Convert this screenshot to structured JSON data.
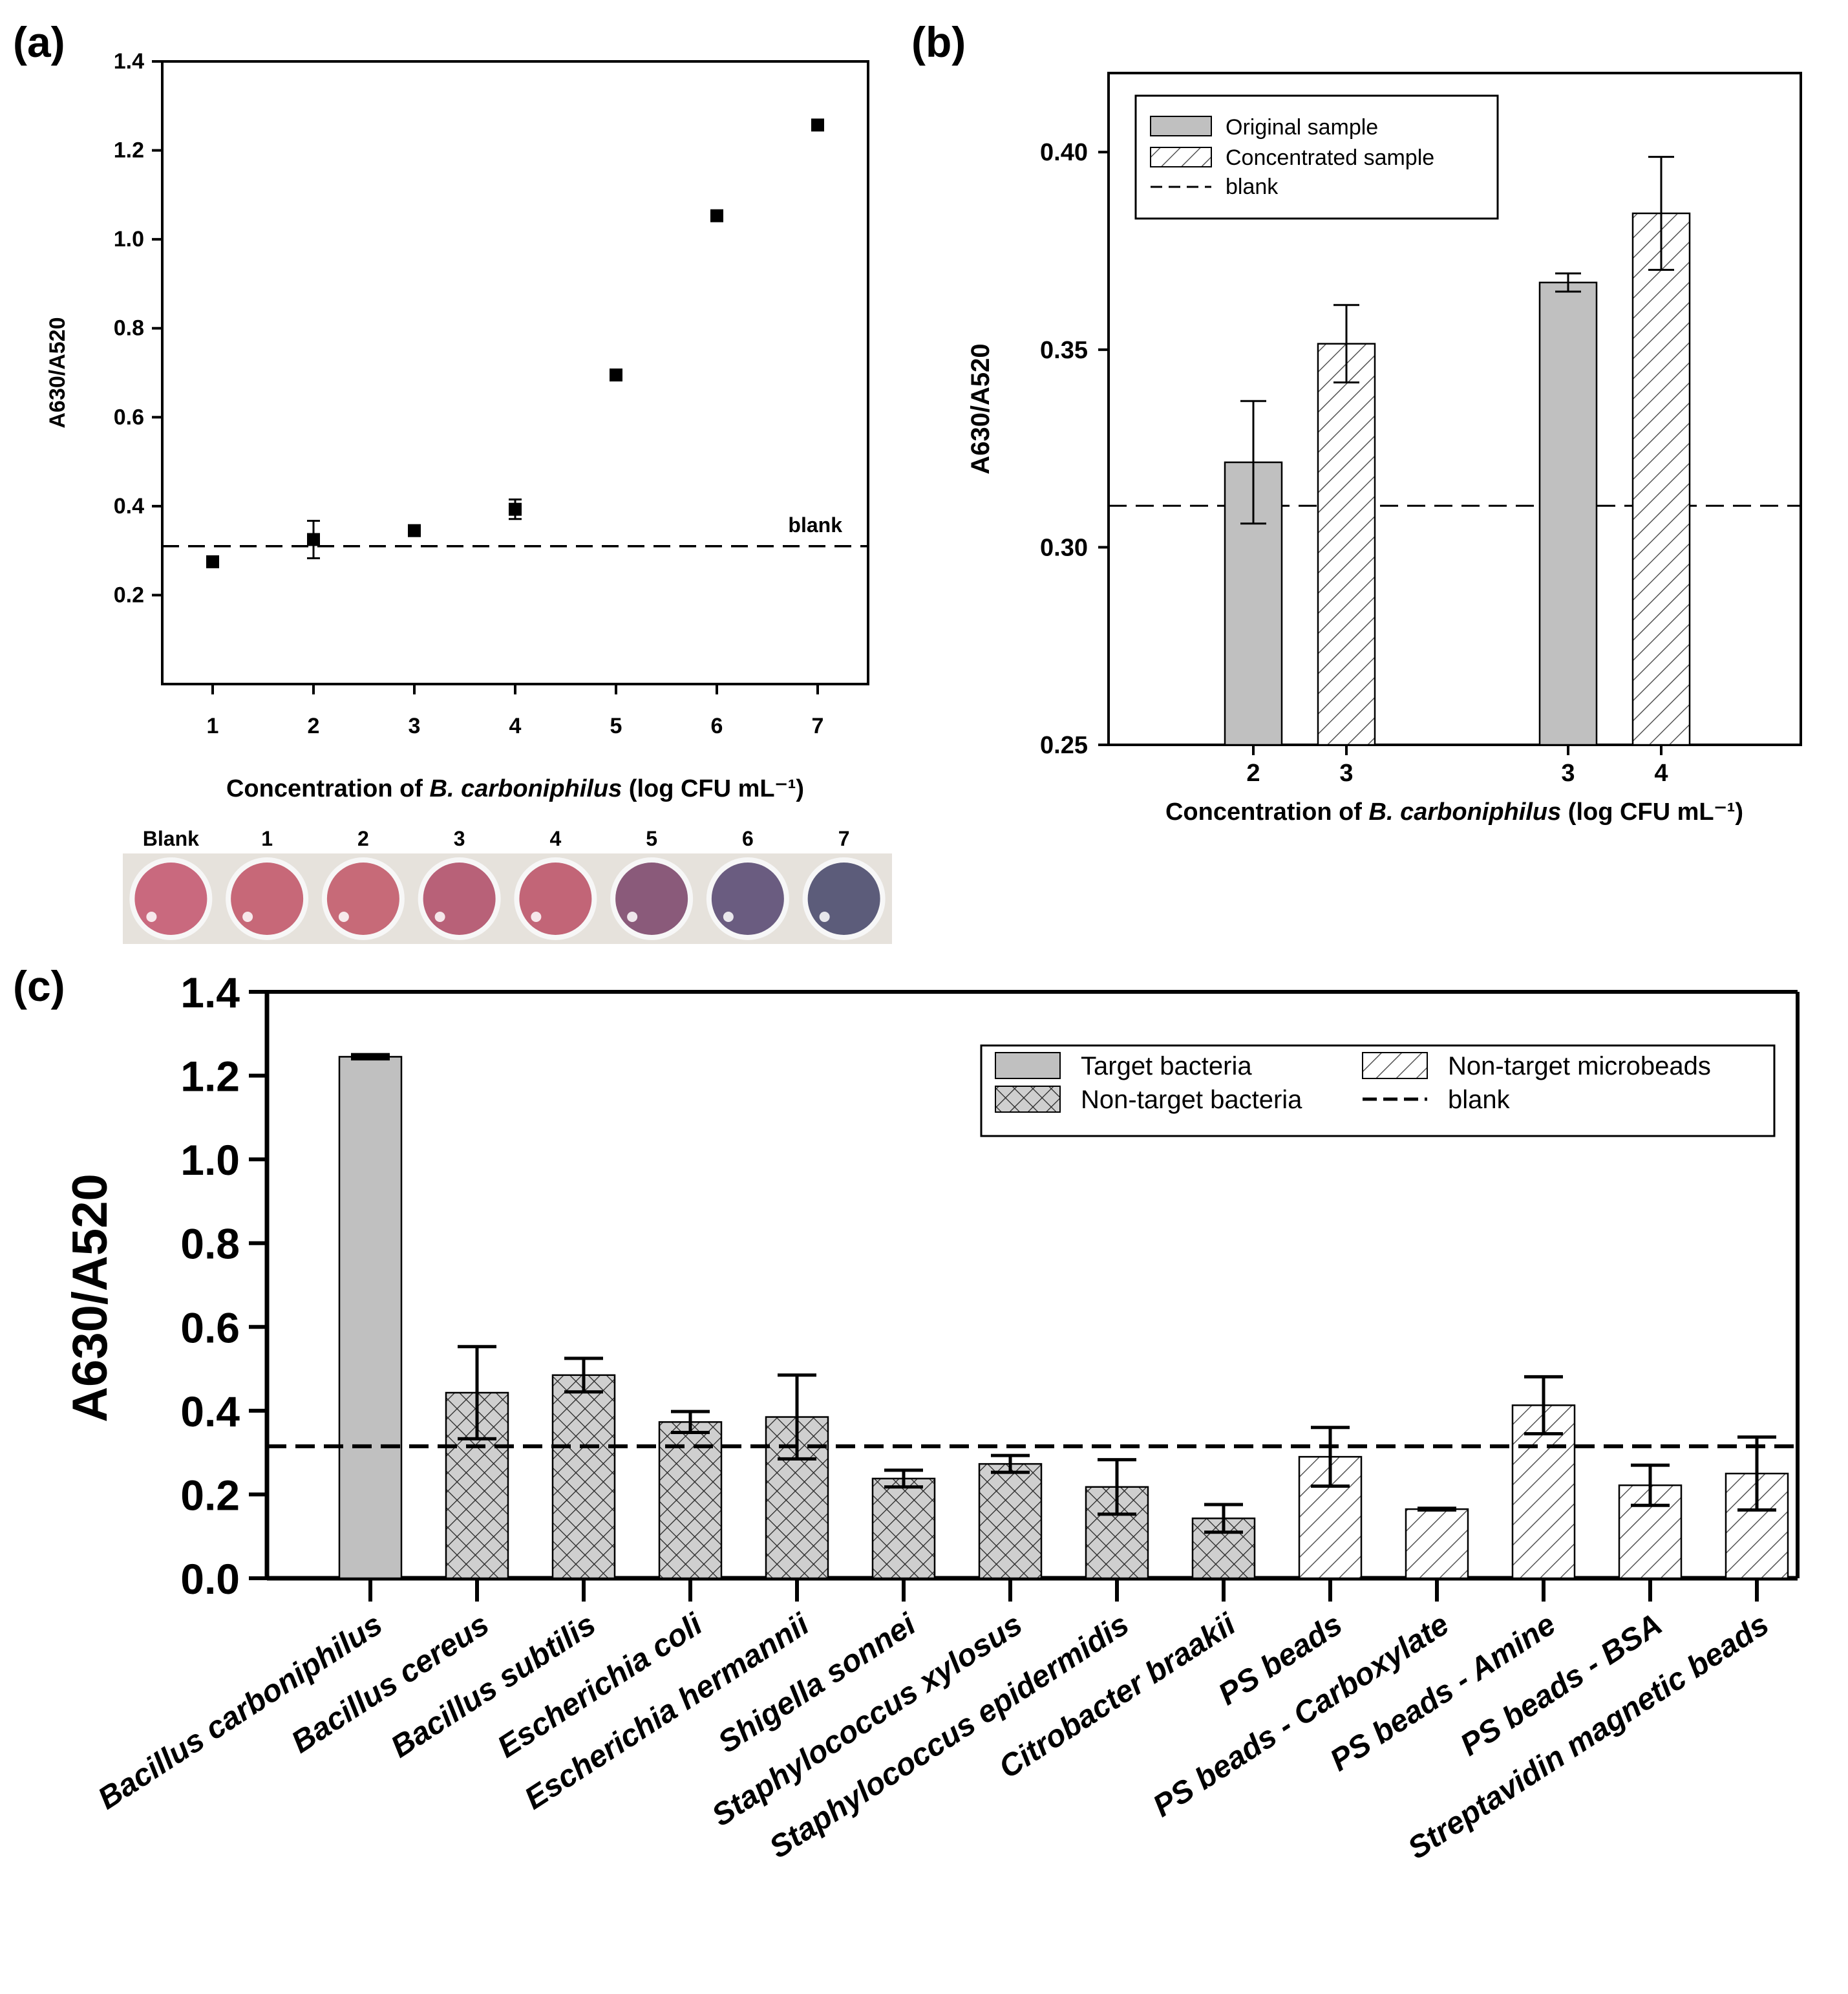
{
  "panels": {
    "a": {
      "label": "(a)"
    },
    "b": {
      "label": "(b)"
    },
    "c": {
      "label": "(c)"
    }
  },
  "chart_data": [
    {
      "id": "a",
      "type": "scatter",
      "xlabel_prefix": "Concentration of ",
      "xlabel_italic": "B. carboniphilus",
      "xlabel_suffix": " (log CFU mL⁻¹)",
      "ylabel": "A630/A520",
      "ylim": [
        0.0,
        1.4
      ],
      "xlim": [
        0.5,
        7.5
      ],
      "yticks": [
        "0.2",
        "0.4",
        "0.6",
        "0.8",
        "1.0",
        "1.2",
        "1.4"
      ],
      "xticks": [
        "1",
        "2",
        "3",
        "4",
        "5",
        "6",
        "7"
      ],
      "x": [
        1,
        2,
        3,
        4,
        5,
        6,
        7
      ],
      "y": [
        0.275,
        0.325,
        0.345,
        0.393,
        0.695,
        1.053,
        1.257
      ],
      "err": [
        0.0,
        0.042,
        0.0,
        0.022,
        0.0,
        0.0,
        0.0
      ],
      "blank": 0.31,
      "blank_label": "blank",
      "wells": {
        "labels": [
          "Blank",
          "1",
          "2",
          "3",
          "4",
          "5",
          "6",
          "7"
        ],
        "colors": [
          "#c9697e",
          "#c76878",
          "#c76a78",
          "#b86178",
          "#c26577",
          "#8a5a7a",
          "#6a5c80",
          "#5c5c7a"
        ]
      }
    },
    {
      "id": "b",
      "type": "bar",
      "xlabel_prefix": "Concentration of ",
      "xlabel_italic": "B. carboniphilus",
      "xlabel_suffix": " (log CFU mL⁻¹)",
      "ylabel": "A630/A520",
      "ylim": [
        0.25,
        0.42
      ],
      "yticks": [
        "0.25",
        "0.30",
        "0.35",
        "0.40"
      ],
      "categories": [
        "2",
        "3",
        "3",
        "4"
      ],
      "kinds": [
        "original",
        "concentrated",
        "original",
        "concentrated"
      ],
      "values": [
        0.3215,
        0.3515,
        0.367,
        0.3845
      ],
      "err": [
        0.0155,
        0.0098,
        0.0023,
        0.0143
      ],
      "blank": 0.3105,
      "legend": [
        "Original sample",
        "Concentrated sample",
        "blank"
      ]
    },
    {
      "id": "c",
      "type": "bar",
      "ylabel": "A630/A520",
      "ylim": [
        0.0,
        1.4
      ],
      "yticks": [
        "0.0",
        "0.2",
        "0.4",
        "0.6",
        "0.8",
        "1.0",
        "1.2",
        "1.4"
      ],
      "categories": [
        "Bacillus carboniphilus",
        "Bacillus cereus",
        "Bacillus subtilis",
        "Escherichia coli",
        "Escherichia hermannii",
        "Shigella sonnei",
        "Staphylococcus xylosus",
        "Staphylococcus epidermidis",
        "Citrobacter braakii",
        "PS beads",
        "PS beads - Carboxylate",
        "PS beads - Amine",
        "PS beads - BSA",
        "Streptavidin magnetic beads"
      ],
      "kinds": [
        "target",
        "bacteria",
        "bacteria",
        "bacteria",
        "bacteria",
        "bacteria",
        "bacteria",
        "bacteria",
        "bacteria",
        "beads",
        "beads",
        "beads",
        "beads",
        "beads"
      ],
      "values": [
        1.245,
        0.443,
        0.485,
        0.373,
        0.385,
        0.238,
        0.273,
        0.218,
        0.143,
        0.29,
        0.165,
        0.413,
        0.222,
        0.25
      ],
      "err": [
        0.005,
        0.11,
        0.04,
        0.025,
        0.1,
        0.02,
        0.02,
        0.065,
        0.033,
        0.07,
        0.002,
        0.068,
        0.048,
        0.087
      ],
      "blank": 0.315,
      "legend": [
        "Target bacteria",
        "Non-target bacteria",
        "Non-target microbeads",
        "blank"
      ]
    }
  ]
}
